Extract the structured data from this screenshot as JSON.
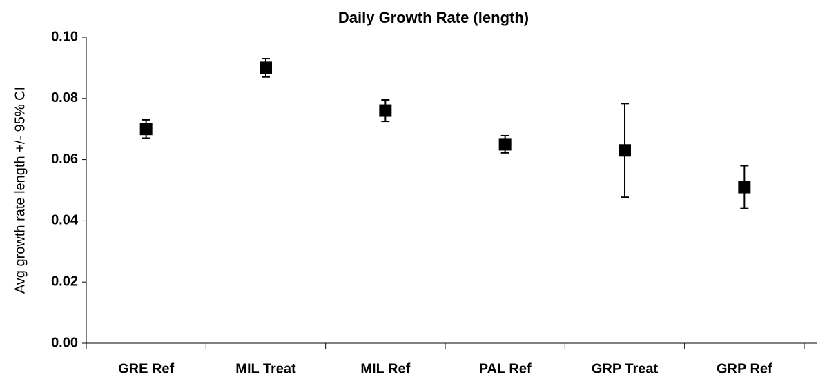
{
  "chart_data": {
    "type": "errorbar",
    "title": "Daily Growth Rate (length)",
    "y_label": "Avg growth rate length +/- 95% CI",
    "categories": [
      "GRE Ref",
      "MIL Treat",
      "MIL Ref",
      "PAL Ref",
      "GRP Treat",
      "GRP Ref"
    ],
    "values": [
      0.07,
      0.09,
      0.076,
      0.065,
      0.063,
      0.051
    ],
    "errors": [
      0.003,
      0.003,
      0.0035,
      0.0028,
      0.0153,
      0.007
    ],
    "color": "#000000",
    "ylim": [
      0,
      0.1
    ],
    "yticks": [
      {
        "value": 0,
        "label": "0.00"
      },
      {
        "value": 0.02,
        "label": "0.02"
      },
      {
        "value": 0.04,
        "label": "0.04"
      },
      {
        "value": 0.06,
        "label": "0.06"
      },
      {
        "value": 0.08,
        "label": "0.08"
      },
      {
        "value": 0.1,
        "label": "0.10"
      }
    ],
    "grid": false
  }
}
